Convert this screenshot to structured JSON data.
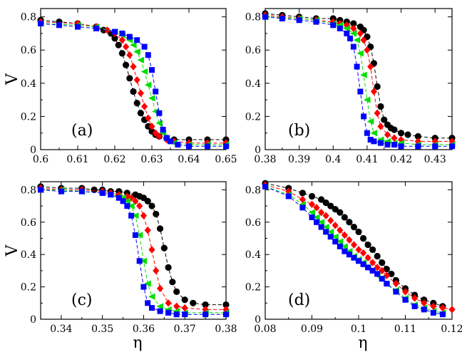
{
  "chart_data": [
    {
      "type": "scatter",
      "panel_label": "(a)",
      "ylabel": "V",
      "xlabel": "",
      "xlim": [
        0.6,
        0.65
      ],
      "ylim": [
        0,
        0.85
      ],
      "xticks": [
        0.6,
        0.61,
        0.62,
        0.63,
        0.64,
        0.65
      ],
      "xtick_labels": [
        "0.6",
        "0.61",
        "0.62",
        "0.63",
        "0.64",
        "0.65"
      ],
      "yticks": [
        0,
        0.2,
        0.4,
        0.6,
        0.8
      ],
      "ytick_labels": [
        "0",
        "0.2",
        "0.4",
        "0.6",
        "0.8"
      ],
      "series": [
        {
          "marker": "circle",
          "color": "#000000",
          "x": [
            0.6,
            0.605,
            0.61,
            0.615,
            0.617,
            0.619,
            0.62,
            0.621,
            0.622,
            0.623,
            0.624,
            0.625,
            0.626,
            0.627,
            0.628,
            0.629,
            0.63,
            0.631,
            0.632,
            0.634,
            0.636,
            0.64,
            0.645,
            0.65
          ],
          "y": [
            0.78,
            0.77,
            0.76,
            0.74,
            0.72,
            0.7,
            0.67,
            0.63,
            0.58,
            0.51,
            0.43,
            0.35,
            0.28,
            0.22,
            0.18,
            0.14,
            0.11,
            0.09,
            0.08,
            0.07,
            0.06,
            0.06,
            0.06,
            0.06
          ]
        },
        {
          "marker": "diamond",
          "color": "#ff0000",
          "x": [
            0.6,
            0.61,
            0.615,
            0.618,
            0.62,
            0.622,
            0.623,
            0.624,
            0.625,
            0.626,
            0.627,
            0.628,
            0.629,
            0.63,
            0.631,
            0.632,
            0.634,
            0.636,
            0.64,
            0.645,
            0.65
          ],
          "y": [
            0.77,
            0.76,
            0.74,
            0.72,
            0.7,
            0.66,
            0.62,
            0.57,
            0.5,
            0.42,
            0.34,
            0.26,
            0.19,
            0.14,
            0.1,
            0.08,
            0.06,
            0.05,
            0.04,
            0.04,
            0.04
          ]
        },
        {
          "marker": "triangle-left",
          "color": "#00dd00",
          "x": [
            0.6,
            0.61,
            0.615,
            0.62,
            0.622,
            0.624,
            0.625,
            0.626,
            0.627,
            0.628,
            0.629,
            0.63,
            0.631,
            0.632,
            0.633,
            0.634,
            0.636,
            0.64,
            0.645,
            0.65
          ],
          "y": [
            0.76,
            0.75,
            0.74,
            0.71,
            0.69,
            0.66,
            0.63,
            0.59,
            0.54,
            0.47,
            0.39,
            0.31,
            0.23,
            0.16,
            0.1,
            0.07,
            0.04,
            0.03,
            0.03,
            0.03
          ]
        },
        {
          "marker": "square",
          "color": "#0000ff",
          "x": [
            0.6,
            0.605,
            0.61,
            0.615,
            0.62,
            0.622,
            0.624,
            0.626,
            0.628,
            0.629,
            0.63,
            0.631,
            0.632,
            0.633,
            0.634,
            0.635,
            0.637,
            0.64,
            0.645,
            0.65
          ],
          "y": [
            0.76,
            0.75,
            0.74,
            0.73,
            0.71,
            0.7,
            0.68,
            0.66,
            0.62,
            0.57,
            0.48,
            0.35,
            0.22,
            0.12,
            0.07,
            0.05,
            0.03,
            0.02,
            0.02,
            0.02
          ]
        }
      ]
    },
    {
      "type": "scatter",
      "panel_label": "(b)",
      "ylabel": "",
      "xlabel": "",
      "xlim": [
        0.38,
        0.435
      ],
      "ylim": [
        0,
        0.85
      ],
      "xticks": [
        0.38,
        0.39,
        0.4,
        0.41,
        0.42,
        0.43
      ],
      "xtick_labels": [
        "0.38",
        "0.39",
        "0.4",
        "0.41",
        "0.42",
        "0.43"
      ],
      "yticks": [
        0,
        0.2,
        0.4,
        0.6,
        0.8
      ],
      "ytick_labels": [
        "0",
        "0.2",
        "0.4",
        "0.6",
        "0.8"
      ],
      "series": [
        {
          "marker": "circle",
          "color": "#000000",
          "x": [
            0.38,
            0.385,
            0.39,
            0.395,
            0.4,
            0.402,
            0.404,
            0.406,
            0.408,
            0.409,
            0.41,
            0.411,
            0.412,
            0.413,
            0.414,
            0.415,
            0.416,
            0.417,
            0.418,
            0.42,
            0.422,
            0.425,
            0.43,
            0.435
          ],
          "y": [
            0.82,
            0.81,
            0.8,
            0.79,
            0.79,
            0.78,
            0.77,
            0.76,
            0.74,
            0.72,
            0.68,
            0.62,
            0.52,
            0.38,
            0.26,
            0.18,
            0.15,
            0.13,
            0.12,
            0.1,
            0.09,
            0.08,
            0.07,
            0.07
          ]
        },
        {
          "marker": "diamond",
          "color": "#ff0000",
          "x": [
            0.38,
            0.385,
            0.39,
            0.395,
            0.4,
            0.402,
            0.404,
            0.406,
            0.408,
            0.409,
            0.41,
            0.411,
            0.412,
            0.413,
            0.414,
            0.416,
            0.418,
            0.42,
            0.425,
            0.43,
            0.435
          ],
          "y": [
            0.81,
            0.8,
            0.79,
            0.78,
            0.77,
            0.76,
            0.75,
            0.73,
            0.7,
            0.66,
            0.6,
            0.5,
            0.35,
            0.22,
            0.14,
            0.09,
            0.07,
            0.06,
            0.05,
            0.05,
            0.05
          ]
        },
        {
          "marker": "triangle-left",
          "color": "#00dd00",
          "x": [
            0.38,
            0.39,
            0.395,
            0.4,
            0.402,
            0.404,
            0.406,
            0.407,
            0.408,
            0.409,
            0.41,
            0.411,
            0.412,
            0.414,
            0.416,
            0.418,
            0.42,
            0.425,
            0.43,
            0.435
          ],
          "y": [
            0.8,
            0.79,
            0.78,
            0.76,
            0.75,
            0.73,
            0.7,
            0.66,
            0.58,
            0.45,
            0.3,
            0.17,
            0.1,
            0.06,
            0.05,
            0.04,
            0.04,
            0.03,
            0.03,
            0.03
          ]
        },
        {
          "marker": "square",
          "color": "#0000ff",
          "x": [
            0.38,
            0.385,
            0.39,
            0.395,
            0.4,
            0.402,
            0.404,
            0.405,
            0.406,
            0.407,
            0.408,
            0.409,
            0.41,
            0.411,
            0.412,
            0.414,
            0.416,
            0.418,
            0.42,
            0.425,
            0.43,
            0.435
          ],
          "y": [
            0.8,
            0.79,
            0.78,
            0.77,
            0.75,
            0.73,
            0.7,
            0.67,
            0.62,
            0.5,
            0.35,
            0.2,
            0.1,
            0.06,
            0.05,
            0.04,
            0.03,
            0.03,
            0.02,
            0.02,
            0.02,
            0.02
          ]
        }
      ]
    },
    {
      "type": "scatter",
      "panel_label": "(c)",
      "ylabel": "V",
      "xlabel": "η",
      "xlim": [
        0.335,
        0.38
      ],
      "ylim": [
        0,
        0.85
      ],
      "xticks": [
        0.34,
        0.35,
        0.36,
        0.37,
        0.38
      ],
      "xtick_labels": [
        "0.34",
        "0.35",
        "0.36",
        "0.37",
        "0.38"
      ],
      "yticks": [
        0,
        0.2,
        0.4,
        0.6,
        0.8
      ],
      "ytick_labels": [
        "0",
        "0.2",
        "0.4",
        "0.6",
        "0.8"
      ],
      "series": [
        {
          "marker": "circle",
          "color": "#000000",
          "x": [
            0.335,
            0.34,
            0.345,
            0.348,
            0.35,
            0.352,
            0.354,
            0.356,
            0.358,
            0.359,
            0.36,
            0.361,
            0.362,
            0.363,
            0.364,
            0.365,
            0.366,
            0.367,
            0.368,
            0.37,
            0.372,
            0.375,
            0.38
          ],
          "y": [
            0.82,
            0.81,
            0.81,
            0.8,
            0.8,
            0.79,
            0.79,
            0.78,
            0.77,
            0.76,
            0.75,
            0.73,
            0.7,
            0.65,
            0.56,
            0.44,
            0.32,
            0.23,
            0.17,
            0.12,
            0.1,
            0.09,
            0.09
          ]
        },
        {
          "marker": "diamond",
          "color": "#ff0000",
          "x": [
            0.335,
            0.34,
            0.345,
            0.35,
            0.352,
            0.354,
            0.356,
            0.357,
            0.358,
            0.359,
            0.36,
            0.361,
            0.362,
            0.363,
            0.364,
            0.366,
            0.368,
            0.37,
            0.375,
            0.38
          ],
          "y": [
            0.81,
            0.8,
            0.8,
            0.79,
            0.78,
            0.77,
            0.76,
            0.75,
            0.73,
            0.7,
            0.64,
            0.55,
            0.43,
            0.3,
            0.19,
            0.1,
            0.08,
            0.07,
            0.06,
            0.06
          ]
        },
        {
          "marker": "triangle-left",
          "color": "#00dd00",
          "x": [
            0.335,
            0.34,
            0.345,
            0.35,
            0.352,
            0.354,
            0.355,
            0.356,
            0.357,
            0.358,
            0.359,
            0.36,
            0.361,
            0.362,
            0.364,
            0.366,
            0.368,
            0.37,
            0.375,
            0.38
          ],
          "y": [
            0.8,
            0.8,
            0.79,
            0.78,
            0.77,
            0.76,
            0.75,
            0.73,
            0.7,
            0.64,
            0.52,
            0.36,
            0.22,
            0.14,
            0.08,
            0.06,
            0.05,
            0.04,
            0.04,
            0.04
          ]
        },
        {
          "marker": "square",
          "color": "#0000ff",
          "x": [
            0.335,
            0.34,
            0.345,
            0.35,
            0.352,
            0.354,
            0.355,
            0.356,
            0.357,
            0.358,
            0.359,
            0.36,
            0.361,
            0.362,
            0.364,
            0.366,
            0.368,
            0.37,
            0.375,
            0.38
          ],
          "y": [
            0.8,
            0.79,
            0.79,
            0.78,
            0.77,
            0.75,
            0.73,
            0.7,
            0.64,
            0.52,
            0.36,
            0.2,
            0.1,
            0.07,
            0.05,
            0.04,
            0.03,
            0.03,
            0.03,
            0.03
          ]
        }
      ]
    },
    {
      "type": "scatter",
      "panel_label": "(d)",
      "ylabel": "",
      "xlabel": "η",
      "xlim": [
        0.08,
        0.12
      ],
      "ylim": [
        0,
        0.85
      ],
      "xticks": [
        0.08,
        0.09,
        0.1,
        0.11,
        0.12
      ],
      "xtick_labels": [
        "0.08",
        "0.09",
        "0.1",
        "0.11",
        "0.12"
      ],
      "yticks": [
        0,
        0.2,
        0.4,
        0.6,
        0.8
      ],
      "ytick_labels": [
        "0",
        "0.2",
        "0.4",
        "0.6",
        "0.8"
      ],
      "series": [
        {
          "marker": "circle",
          "color": "#000000",
          "x": [
            0.08,
            0.085,
            0.088,
            0.09,
            0.092,
            0.093,
            0.094,
            0.095,
            0.096,
            0.097,
            0.098,
            0.099,
            0.1,
            0.101,
            0.102,
            0.103,
            0.104,
            0.105,
            0.106,
            0.107,
            0.108,
            0.11,
            0.112,
            0.114,
            0.116,
            0.118
          ],
          "y": [
            0.84,
            0.81,
            0.78,
            0.76,
            0.74,
            0.72,
            0.7,
            0.68,
            0.66,
            0.63,
            0.6,
            0.57,
            0.54,
            0.5,
            0.46,
            0.43,
            0.39,
            0.35,
            0.31,
            0.28,
            0.24,
            0.19,
            0.15,
            0.12,
            0.1,
            0.08
          ]
        },
        {
          "marker": "diamond",
          "color": "#ff0000",
          "x": [
            0.08,
            0.085,
            0.088,
            0.09,
            0.091,
            0.092,
            0.093,
            0.094,
            0.095,
            0.096,
            0.097,
            0.098,
            0.099,
            0.1,
            0.101,
            0.102,
            0.103,
            0.104,
            0.105,
            0.106,
            0.108,
            0.11,
            0.112,
            0.114,
            0.116,
            0.118,
            0.12
          ],
          "y": [
            0.83,
            0.79,
            0.74,
            0.71,
            0.69,
            0.66,
            0.64,
            0.61,
            0.58,
            0.55,
            0.52,
            0.49,
            0.46,
            0.43,
            0.41,
            0.38,
            0.35,
            0.32,
            0.3,
            0.27,
            0.22,
            0.17,
            0.13,
            0.1,
            0.08,
            0.07,
            0.06
          ]
        },
        {
          "marker": "triangle-left",
          "color": "#00dd00",
          "x": [
            0.08,
            0.085,
            0.088,
            0.09,
            0.091,
            0.092,
            0.093,
            0.094,
            0.095,
            0.096,
            0.097,
            0.098,
            0.099,
            0.1,
            0.101,
            0.102,
            0.103,
            0.104,
            0.105,
            0.106,
            0.108,
            0.11,
            0.112,
            0.114,
            0.116,
            0.118
          ],
          "y": [
            0.82,
            0.77,
            0.71,
            0.66,
            0.63,
            0.6,
            0.57,
            0.54,
            0.51,
            0.48,
            0.45,
            0.42,
            0.39,
            0.37,
            0.35,
            0.32,
            0.3,
            0.27,
            0.25,
            0.22,
            0.18,
            0.13,
            0.09,
            0.07,
            0.05,
            0.04
          ]
        },
        {
          "marker": "square",
          "color": "#0000ff",
          "x": [
            0.08,
            0.085,
            0.088,
            0.09,
            0.091,
            0.092,
            0.093,
            0.094,
            0.095,
            0.096,
            0.097,
            0.098,
            0.099,
            0.1,
            0.101,
            0.102,
            0.103,
            0.104,
            0.105,
            0.106,
            0.108,
            0.11,
            0.112,
            0.114,
            0.116,
            0.118
          ],
          "y": [
            0.82,
            0.76,
            0.69,
            0.63,
            0.6,
            0.57,
            0.54,
            0.51,
            0.48,
            0.45,
            0.42,
            0.4,
            0.38,
            0.36,
            0.34,
            0.32,
            0.3,
            0.28,
            0.25,
            0.22,
            0.17,
            0.12,
            0.08,
            0.06,
            0.04,
            0.03
          ]
        }
      ]
    }
  ]
}
